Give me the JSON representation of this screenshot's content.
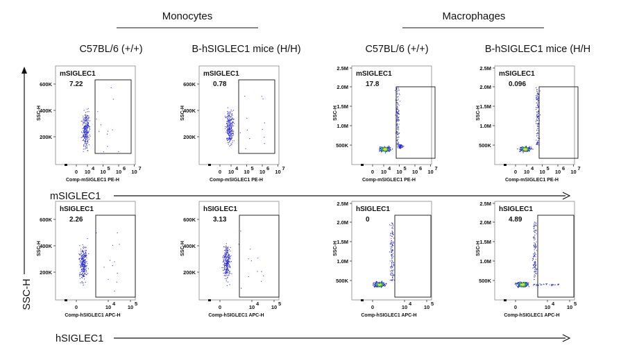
{
  "headers": {
    "monocytes": "Monocytes",
    "macrophages": "Macrophages"
  },
  "columns": [
    "C57BL/6 (+/+)",
    "B-hSIGLEC1 mice  (H/H)",
    "C57BL/6 (+/+)",
    "B-hSIGLEC1 mice (H/H"
  ],
  "axes": {
    "y_title": "SSC-H",
    "row1_arrow": "mSIGLEC1",
    "row2_arrow": "hSIGLEC1"
  },
  "colors": {
    "dots": "#2b2bd8",
    "dense_core": "#2fbf4a",
    "dense_center": "#e8e01a"
  },
  "chart_data": [
    {
      "type": "scatter",
      "row": 0,
      "col": 0,
      "gate_name": "mSIGLEC1",
      "gate_value": "7.22",
      "y_label": "SSC-H",
      "y_ticks": [
        "600K",
        "400K",
        "200K"
      ],
      "x_label": "Comp-mSIGLEC1 PE-H",
      "x_ticks": [
        "0",
        "10",
        "10",
        "10",
        "10"
      ],
      "x_exponents": [
        "",
        "4",
        "5",
        "6",
        "7"
      ],
      "population": {
        "x_center": 0.5,
        "y_center": 260000
      }
    },
    {
      "type": "scatter",
      "row": 0,
      "col": 1,
      "gate_name": "mSIGLEC1",
      "gate_value": "0.78",
      "y_label": "SSC-H",
      "y_ticks": [
        "600K",
        "400K",
        "200K"
      ],
      "x_label": "Comp-mSIGLEC1 PE-H",
      "x_ticks": [
        "0",
        "10",
        "10",
        "10",
        "10"
      ],
      "x_exponents": [
        "",
        "4",
        "5",
        "6",
        "7"
      ],
      "population": {
        "x_center": 0.5,
        "y_center": 280000
      }
    },
    {
      "type": "scatter",
      "row": 0,
      "col": 2,
      "gate_name": "mSIGLEC1",
      "gate_value": "17.8",
      "y_label": "SSC-H",
      "y_ticks": [
        "2.5M",
        "2.0M",
        "1.5M",
        "1.0M",
        "500K"
      ],
      "x_label": "Comp-mSIGLEC1 PE-H",
      "x_ticks": [
        "0",
        "10",
        "10",
        "10",
        "10"
      ],
      "x_exponents": [
        "",
        "4",
        "5",
        "6",
        "7"
      ],
      "population": {
        "x_center": 0.6,
        "y_center": 350000
      }
    },
    {
      "type": "scatter",
      "row": 0,
      "col": 3,
      "gate_name": "mSIGLEC1",
      "gate_value": "0.096",
      "y_label": "SSC-H",
      "y_ticks": [
        "2.5M",
        "2.0M",
        "1.5M",
        "1.0M",
        "500K"
      ],
      "x_label": "Comp-mSIGLEC1 PE-H",
      "x_ticks": [
        "0",
        "10",
        "10",
        "10",
        "10"
      ],
      "x_exponents": [
        "",
        "4",
        "5",
        "6",
        "7"
      ],
      "population": {
        "x_center": 0.4,
        "y_center": 350000
      }
    },
    {
      "type": "scatter",
      "row": 1,
      "col": 0,
      "gate_name": "hSIGLEC1",
      "gate_value": "2.26",
      "y_label": "SSC-H",
      "y_ticks": [
        "600K",
        "400K",
        "200K"
      ],
      "x_label": "Comp-hSIGLEC1 APC-H",
      "x_ticks": [
        "0",
        "10",
        "10"
      ],
      "x_exponents": [
        "",
        "4",
        "5"
      ],
      "population": {
        "x_center": 0.2,
        "y_center": 270000
      }
    },
    {
      "type": "scatter",
      "row": 1,
      "col": 1,
      "gate_name": "hSIGLEC1",
      "gate_value": "3.13",
      "y_label": "SSC-H",
      "y_ticks": [
        "600K",
        "400K",
        "200K"
      ],
      "x_label": "Comp-hSIGLEC1 APC-H",
      "x_ticks": [
        "0",
        "10",
        "10"
      ],
      "x_exponents": [
        "",
        "4",
        "5"
      ],
      "population": {
        "x_center": 0.2,
        "y_center": 280000
      }
    },
    {
      "type": "scatter",
      "row": 1,
      "col": 2,
      "gate_name": "hSIGLEC1",
      "gate_value": "0",
      "y_label": "SSC-H",
      "y_ticks": [
        "2.5M",
        "2.0M",
        "1.5M",
        "1.0M",
        "500K"
      ],
      "x_label": "Comp-hSIGLEC1 APC-H",
      "x_ticks": [
        "0",
        "10",
        "10"
      ],
      "x_exponents": [
        "",
        "4",
        "5"
      ],
      "population": {
        "x_center": 0.2,
        "y_center": 350000
      }
    },
    {
      "type": "scatter",
      "row": 1,
      "col": 3,
      "gate_name": "hSIGLEC1",
      "gate_value": "4.89",
      "y_label": "SSC-H",
      "y_ticks": [
        "2.5M",
        "2.0M",
        "1.5M",
        "1.0M",
        "500K"
      ],
      "x_label": "Comp-hSIGLEC1 APC-H",
      "x_ticks": [
        "0",
        "10",
        "10"
      ],
      "x_exponents": [
        "",
        "4",
        "5"
      ],
      "population": {
        "x_center": 0.2,
        "y_center": 350000
      }
    }
  ]
}
